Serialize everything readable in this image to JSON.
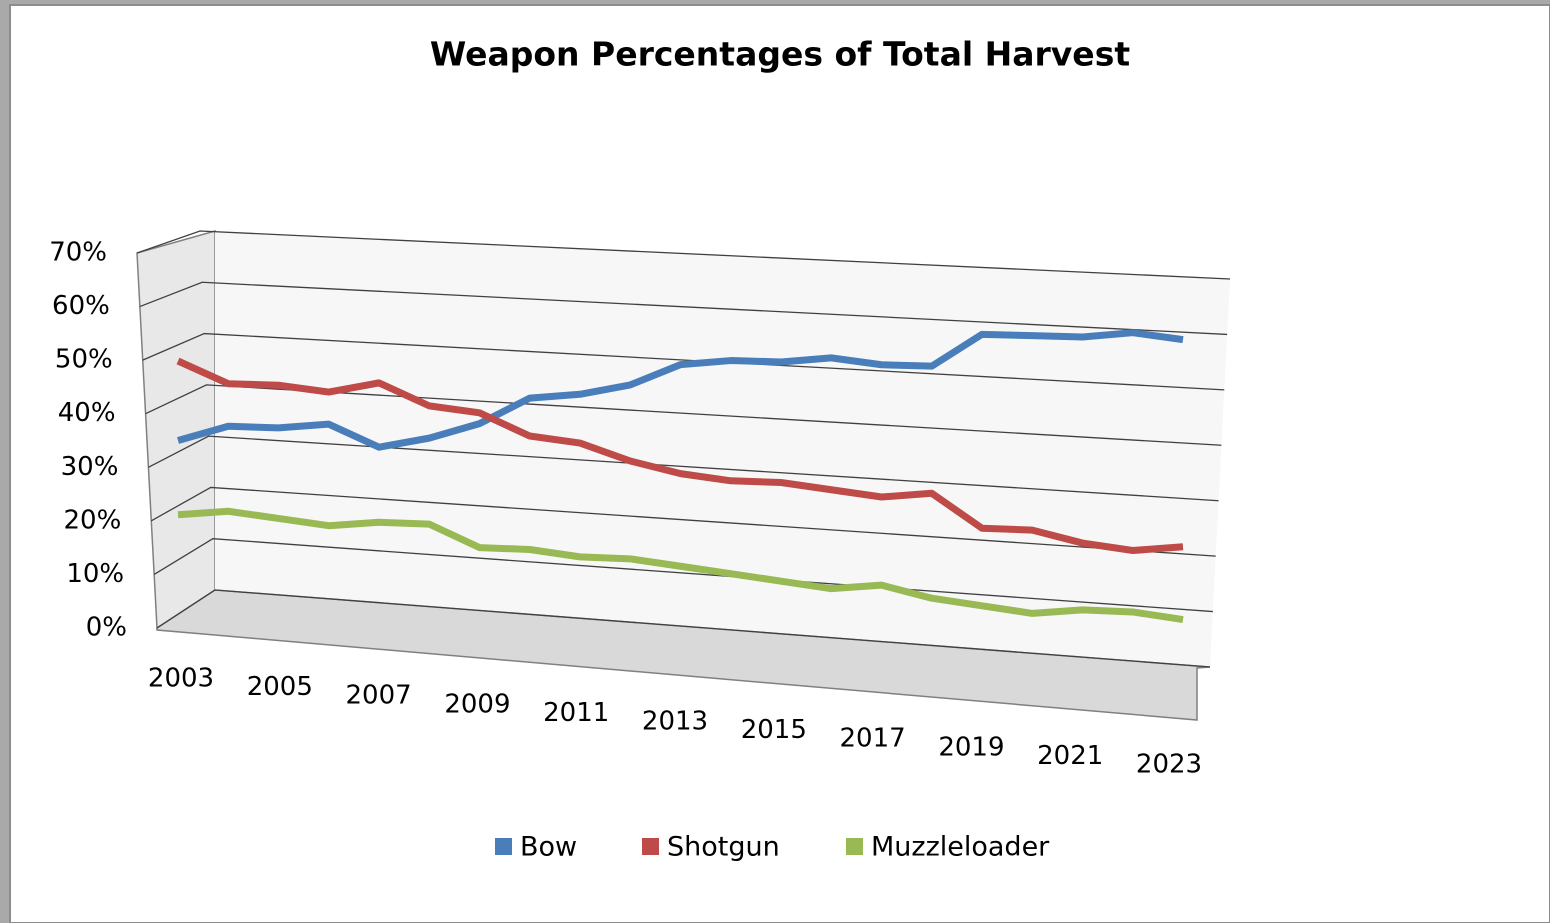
{
  "chart_data": {
    "type": "line3d",
    "title": "Weapon Percentages of Total Harvest",
    "categories": [
      "2003",
      null,
      "2005",
      null,
      "2007",
      null,
      "2009",
      null,
      "2011",
      null,
      "2013",
      null,
      "2015",
      null,
      "2017",
      null,
      "2019",
      null,
      "2021",
      null,
      "2023"
    ],
    "series": [
      {
        "name": "Bow",
        "color": "#4a7ebb",
        "values": [
          35,
          38,
          38,
          39,
          35,
          37,
          40,
          45,
          46,
          48,
          52,
          53,
          53,
          54,
          53,
          53,
          59,
          59,
          59,
          60,
          59
        ]
      },
      {
        "name": "Shotgun",
        "color": "#be4b48",
        "values": [
          50,
          46,
          46,
          45,
          47,
          43,
          42,
          38,
          37,
          34,
          32,
          31,
          31,
          30,
          29,
          30,
          24,
          24,
          22,
          21,
          22
        ]
      },
      {
        "name": "Muzzleloader",
        "color": "#98b954",
        "values": [
          21,
          22,
          21,
          20,
          21,
          21,
          17,
          17,
          16,
          16,
          15,
          14,
          13,
          12,
          13,
          11,
          10,
          9,
          10,
          10,
          9
        ]
      }
    ],
    "ylim": [
      0,
      70
    ],
    "yticks": [
      {
        "value": 0,
        "label": "0%"
      },
      {
        "value": 10,
        "label": "10%"
      },
      {
        "value": 20,
        "label": "20%"
      },
      {
        "value": 30,
        "label": "30%"
      },
      {
        "value": 40,
        "label": "40%"
      },
      {
        "value": 50,
        "label": "50%"
      },
      {
        "value": 60,
        "label": "60%"
      },
      {
        "value": 70,
        "label": "70%"
      }
    ],
    "grid": true,
    "legend": "bottom"
  }
}
